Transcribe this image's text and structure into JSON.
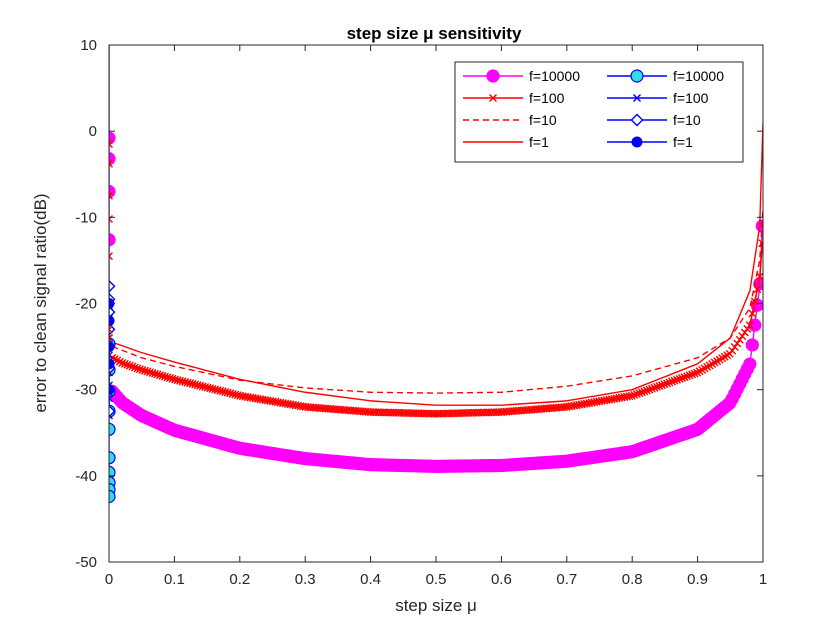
{
  "chart_data": {
    "type": "line",
    "title": "step size μ sensitivity",
    "xlabel": "step size μ",
    "ylabel": "error to clean signal ratio(dB)",
    "xlim": [
      0,
      1
    ],
    "ylim": [
      -50,
      10
    ],
    "xticks": [
      0,
      0.1,
      0.2,
      0.3,
      0.4,
      0.5,
      0.6,
      0.7,
      0.8,
      0.9,
      1
    ],
    "xtick_labels": [
      "0",
      "0.1",
      "0.2",
      "0.3",
      "0.4",
      "0.5",
      "0.6",
      "0.7",
      "0.8",
      "0.9",
      "1"
    ],
    "yticks": [
      -50,
      -40,
      -30,
      -20,
      -10,
      0,
      10
    ],
    "ytick_labels": [
      "-50",
      "-40",
      "-30",
      "-20",
      "-10",
      "0",
      "10"
    ],
    "grid": false,
    "legend_position": "top-right",
    "series": [
      {
        "name": "f=10000",
        "color": "#ff00ff",
        "marker": "filled-circle",
        "style": "solid",
        "x": [
          0.005,
          0.02,
          0.05,
          0.1,
          0.2,
          0.3,
          0.4,
          0.5,
          0.6,
          0.7,
          0.8,
          0.9,
          0.95,
          0.98,
          0.995,
          0.999
        ],
        "y": [
          -30.2,
          -31.5,
          -33.0,
          -34.7,
          -36.8,
          -38.0,
          -38.7,
          -38.9,
          -38.8,
          -38.3,
          -37.2,
          -34.6,
          -31.5,
          -27,
          -18,
          -11
        ]
      },
      {
        "name": "f=100",
        "color": "#ff0000",
        "marker": "x",
        "style": "solid-thick",
        "x": [
          0.005,
          0.02,
          0.05,
          0.1,
          0.2,
          0.3,
          0.4,
          0.5,
          0.6,
          0.7,
          0.8,
          0.9,
          0.95,
          0.98,
          0.995,
          0.999
        ],
        "y": [
          -26.3,
          -26.9,
          -27.7,
          -28.8,
          -30.7,
          -32.0,
          -32.6,
          -32.8,
          -32.6,
          -32.0,
          -30.7,
          -28.0,
          -25.8,
          -22.5,
          -17,
          -13
        ]
      },
      {
        "name": "f=10",
        "color": "#ff0000",
        "marker": "none",
        "style": "dashed",
        "x": [
          0.005,
          0.05,
          0.1,
          0.2,
          0.3,
          0.4,
          0.5,
          0.6,
          0.7,
          0.8,
          0.9,
          0.95,
          0.98,
          0.995,
          1.0
        ],
        "y": [
          -25.0,
          -26.3,
          -27.3,
          -28.9,
          -29.8,
          -30.3,
          -30.4,
          -30.3,
          -29.6,
          -28.4,
          -26.3,
          -24.0,
          -20.5,
          -15,
          -9
        ]
      },
      {
        "name": "f=1",
        "color": "#ff0000",
        "marker": "none",
        "style": "solid",
        "x": [
          0.005,
          0.05,
          0.1,
          0.2,
          0.3,
          0.4,
          0.5,
          0.6,
          0.7,
          0.8,
          0.9,
          0.95,
          0.98,
          0.995,
          1.0
        ],
        "y": [
          -24.5,
          -25.7,
          -26.8,
          -28.8,
          -30.3,
          -31.3,
          -31.8,
          -31.8,
          -31.3,
          -30.0,
          -27.0,
          -24.0,
          -18.5,
          -11,
          1
        ]
      },
      {
        "name": "f=10000",
        "color": "#0000ff",
        "fill": "#33dddd",
        "marker": "filled-circle",
        "style": "solid",
        "x": [
          0,
          0,
          0,
          0,
          0,
          0,
          0,
          0,
          0,
          0
        ],
        "y": [
          -24.7,
          -27.7,
          -30.2,
          -32.5,
          -34.6,
          -37.9,
          -39.6,
          -40.8,
          -41.6,
          -42.4
        ]
      },
      {
        "name": "f=100",
        "color": "#0000ff",
        "marker": "x",
        "style": "solid",
        "x": [
          0,
          0,
          0,
          0,
          0,
          0,
          0,
          0
        ],
        "y": [
          -21.0,
          -22.5,
          -24.0,
          -26.0,
          -28.0,
          -29.5,
          -31.0,
          -33.0
        ]
      },
      {
        "name": "f=10",
        "color": "#0000ff",
        "marker": "diamond",
        "style": "solid",
        "x": [
          0,
          0,
          0,
          0,
          0,
          0,
          0,
          0
        ],
        "y": [
          -18.0,
          -19.5,
          -21.0,
          -23.0,
          -25.0,
          -27.5,
          -30.0,
          -32.5
        ]
      },
      {
        "name": "f=1",
        "color": "#0000ff",
        "marker": "filled-circle-small",
        "style": "solid",
        "x": [
          0,
          0,
          0,
          0,
          0,
          0
        ],
        "y": [
          10,
          -20.0,
          -22.0,
          -25.0,
          -27.0,
          -30.0
        ]
      }
    ],
    "extra_markers": {
      "magenta_at_zero_y": [
        -0.8,
        -3.2,
        -7.0,
        -12.6
      ],
      "red_x_at_zero_y": [
        -1.5,
        -3.8,
        -7.5,
        -10.2,
        -14.5,
        -23.0,
        -24.0
      ]
    }
  }
}
